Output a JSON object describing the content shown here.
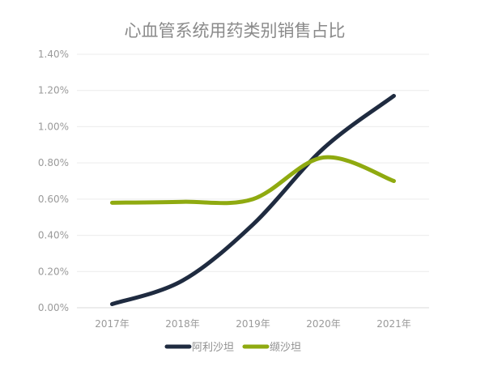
{
  "chart_data": {
    "type": "line",
    "title": "心血管系统用药类别销售占比",
    "categories": [
      "2017年",
      "2018年",
      "2019年",
      "2020年",
      "2021年"
    ],
    "ylim": [
      0,
      0.014
    ],
    "yticks": [
      0.0,
      0.002,
      0.004,
      0.006,
      0.008,
      0.01,
      0.012,
      0.014
    ],
    "ytick_labels": [
      "0.00%",
      "0.20%",
      "0.40%",
      "0.60%",
      "0.80%",
      "1.00%",
      "1.20%",
      "1.40%"
    ],
    "grid": true,
    "legend": "bottom",
    "series": [
      {
        "name": "阿利沙坦",
        "values": [
          0.0002,
          0.0015,
          0.0046,
          0.0088,
          0.0117
        ],
        "color": "#1f2b40"
      },
      {
        "name": "缬沙坦",
        "values": [
          0.0058,
          0.00585,
          0.006,
          0.0083,
          0.007
        ],
        "color": "#8faa10"
      }
    ]
  }
}
